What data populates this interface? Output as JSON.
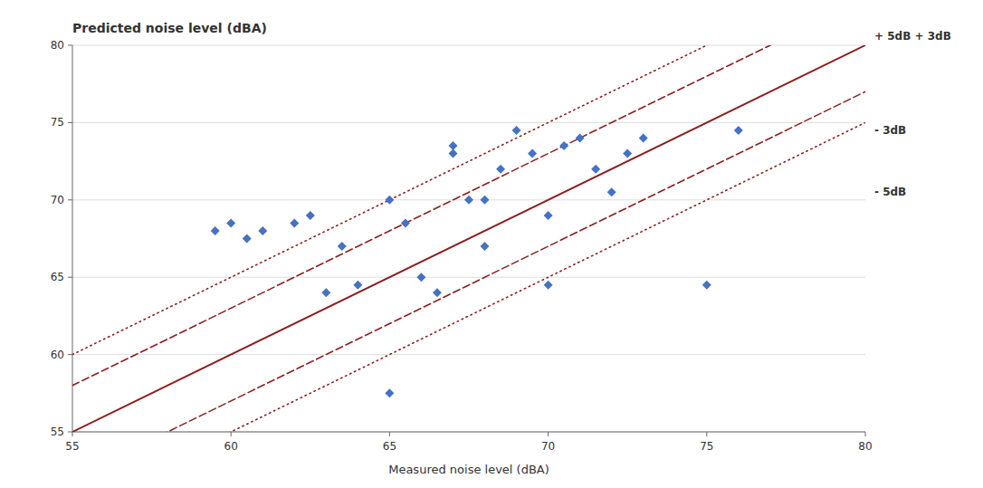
{
  "chart_data": {
    "type": "scatter",
    "title": "Predicted noise level (dBA)",
    "x_label": "Measured noise level (dBA)",
    "xlim": [
      55,
      80
    ],
    "ylim": [
      55,
      80
    ],
    "xticks": [
      55,
      60,
      65,
      70,
      75,
      80
    ],
    "yticks": [
      55,
      60,
      65,
      70,
      75,
      80
    ],
    "grid": true,
    "x": [
      59.5,
      60.0,
      60.5,
      61.0,
      62.0,
      62.5,
      63.0,
      63.5,
      64.0,
      65.0,
      65.0,
      65.5,
      66.0,
      66.5,
      67.0,
      67.0,
      67.5,
      68.0,
      68.0,
      68.5,
      69.0,
      69.5,
      70.0,
      70.0,
      70.5,
      71.0,
      71.5,
      72.0,
      72.5,
      73.0,
      75.0,
      76.0
    ],
    "series": [
      {
        "color": "#4472C4",
        "marker": "diamond",
        "values": [
          68.0,
          68.5,
          67.5,
          68.0,
          68.5,
          69.0,
          64.0,
          67.0,
          64.5,
          57.5,
          70.0,
          68.5,
          65.0,
          64.0,
          73.0,
          73.5,
          70.0,
          70.0,
          67.0,
          72.0,
          74.5,
          73.0,
          69.0,
          64.5,
          73.5,
          74.0,
          72.0,
          70.5,
          73.0,
          74.0,
          64.5,
          74.5
        ]
      }
    ],
    "reference_lines": [
      {
        "offset": 5,
        "line_style": "dotted",
        "color": "#8B2020"
      },
      {
        "offset": 3,
        "line_style": "dashed",
        "color": "#8B2020"
      },
      {
        "offset": 0,
        "line_style": "solid",
        "color": "#8B2020"
      },
      {
        "offset": -3,
        "line_style": "dashed",
        "color": "#8B2020"
      },
      {
        "offset": -5,
        "line_style": "dotted",
        "color": "#8B2020"
      }
    ],
    "annotations": [
      "+ 5dB + 3dB",
      "- 3dB",
      "- 5dB"
    ]
  }
}
